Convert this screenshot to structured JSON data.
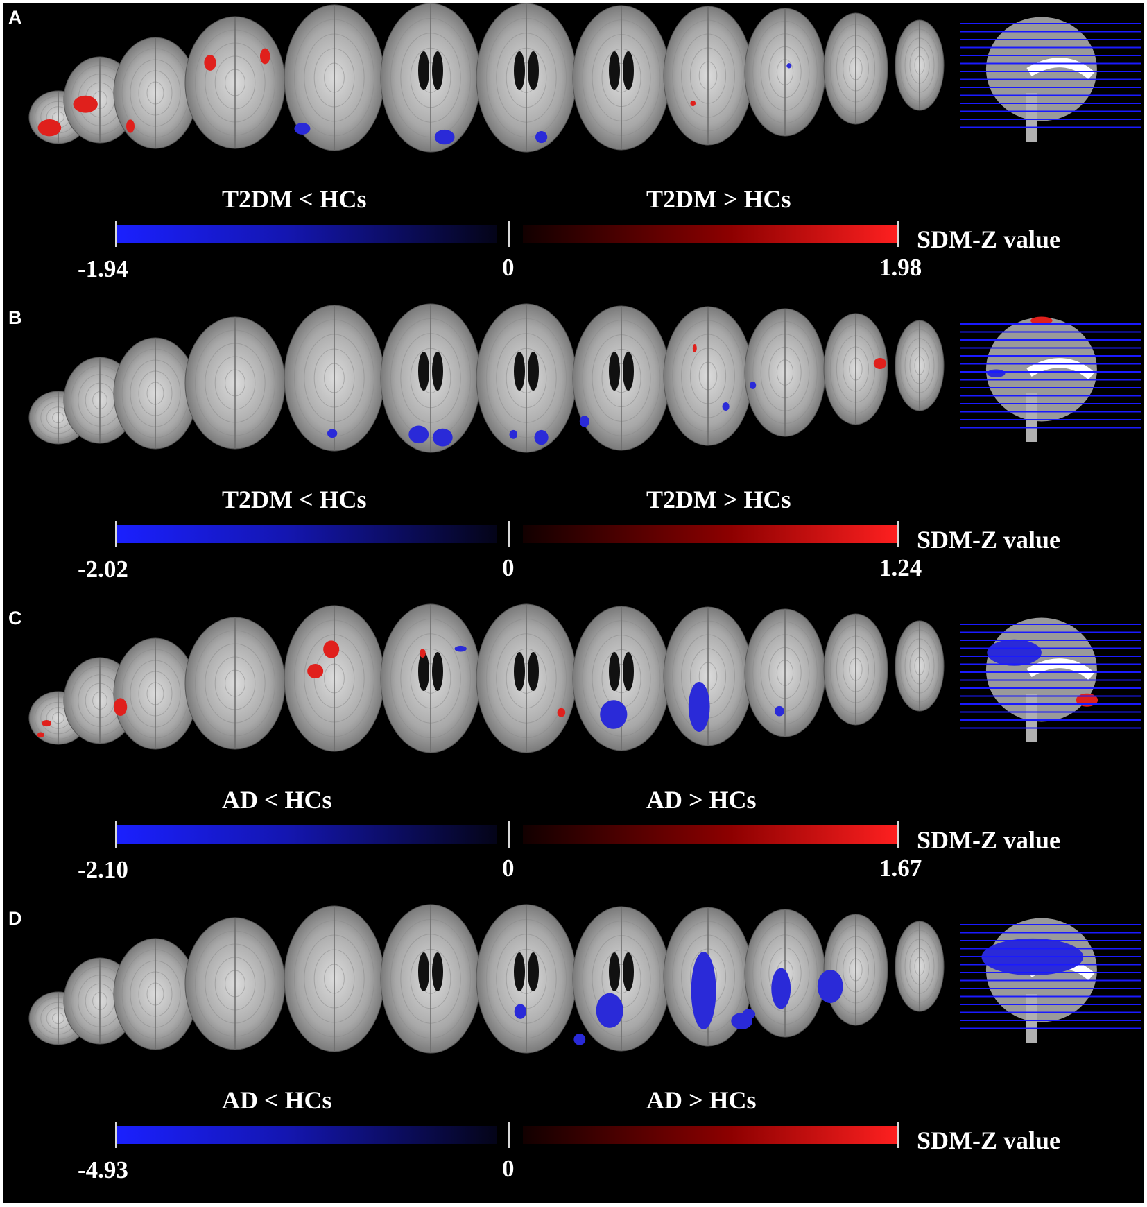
{
  "panels": [
    {
      "letter": "A",
      "left_label": "T2DM < HCs",
      "right_label": "T2DM > HCs",
      "axis_title": "SDM-Z value",
      "min": "-1.94",
      "zero": "0",
      "max": "1.98",
      "clusters": [
        {
          "slice": 0,
          "fx": 0.35,
          "fy": 0.7,
          "rx": 0.2,
          "ry": 0.16,
          "c": "#e0201c"
        },
        {
          "slice": 1,
          "fx": 0.3,
          "fy": 0.55,
          "rx": 0.17,
          "ry": 0.1,
          "c": "#e0201c"
        },
        {
          "slice": 2,
          "fx": 0.2,
          "fy": 0.8,
          "rx": 0.05,
          "ry": 0.06,
          "c": "#e0201c"
        },
        {
          "slice": 3,
          "fx": 0.25,
          "fy": 0.35,
          "rx": 0.06,
          "ry": 0.06,
          "c": "#e0201c"
        },
        {
          "slice": 3,
          "fx": 0.8,
          "fy": 0.3,
          "rx": 0.05,
          "ry": 0.06,
          "c": "#e0201c"
        },
        {
          "slice": 4,
          "fx": 0.18,
          "fy": 0.85,
          "rx": 0.08,
          "ry": 0.04,
          "c": "#2a2ad8"
        },
        {
          "slice": 5,
          "fx": 0.64,
          "fy": 0.9,
          "rx": 0.1,
          "ry": 0.05,
          "c": "#2a2ad8"
        },
        {
          "slice": 6,
          "fx": 0.65,
          "fy": 0.9,
          "rx": 0.06,
          "ry": 0.04,
          "c": "#2a2ad8"
        },
        {
          "slice": 8,
          "fx": 0.33,
          "fy": 0.7,
          "rx": 0.03,
          "ry": 0.02,
          "c": "#e0201c"
        },
        {
          "slice": 9,
          "fx": 0.55,
          "fy": 0.45,
          "rx": 0.03,
          "ry": 0.02,
          "c": "#2a2ad8"
        }
      ],
      "sagittal_clusters": []
    },
    {
      "letter": "B",
      "left_label": "T2DM < HCs",
      "right_label": "T2DM > HCs",
      "axis_title": "SDM-Z value",
      "min": "-2.02",
      "zero": "0",
      "max": "1.24",
      "clusters": [
        {
          "slice": 4,
          "fx": 0.48,
          "fy": 0.88,
          "rx": 0.05,
          "ry": 0.03,
          "c": "#2a2ad8"
        },
        {
          "slice": 5,
          "fx": 0.38,
          "fy": 0.88,
          "rx": 0.1,
          "ry": 0.06,
          "c": "#2a2ad8"
        },
        {
          "slice": 5,
          "fx": 0.62,
          "fy": 0.9,
          "rx": 0.1,
          "ry": 0.06,
          "c": "#2a2ad8"
        },
        {
          "slice": 6,
          "fx": 0.65,
          "fy": 0.9,
          "rx": 0.07,
          "ry": 0.05,
          "c": "#2a2ad8"
        },
        {
          "slice": 6,
          "fx": 0.37,
          "fy": 0.88,
          "rx": 0.04,
          "ry": 0.03,
          "c": "#2a2ad8"
        },
        {
          "slice": 7,
          "fx": 0.12,
          "fy": 0.8,
          "rx": 0.05,
          "ry": 0.04,
          "c": "#2a2ad8"
        },
        {
          "slice": 8,
          "fx": 0.35,
          "fy": 0.3,
          "rx": 0.02,
          "ry": 0.03,
          "c": "#e0201c"
        },
        {
          "slice": 8,
          "fx": 0.7,
          "fy": 0.72,
          "rx": 0.04,
          "ry": 0.03,
          "c": "#2a2ad8"
        },
        {
          "slice": 9,
          "fx": 0.1,
          "fy": 0.6,
          "rx": 0.04,
          "ry": 0.03,
          "c": "#2a2ad8"
        },
        {
          "slice": 10,
          "fx": 0.88,
          "fy": 0.45,
          "rx": 0.1,
          "ry": 0.05,
          "c": "#e0201c"
        }
      ],
      "sagittal_clusters": [
        {
          "fx": 0.45,
          "fy": 0.08,
          "rx": 0.06,
          "ry": 0.03,
          "c": "#e0201c"
        },
        {
          "fx": 0.2,
          "fy": 0.48,
          "rx": 0.05,
          "ry": 0.03,
          "c": "#2a2ad8"
        }
      ]
    },
    {
      "letter": "C",
      "left_label": "AD < HCs",
      "right_label": "AD > HCs",
      "axis_title": "SDM-Z value",
      "min": "-2.10",
      "zero": "0",
      "max": "1.67",
      "clusters": [
        {
          "slice": 0,
          "fx": 0.3,
          "fy": 0.6,
          "rx": 0.08,
          "ry": 0.06,
          "c": "#e0201c"
        },
        {
          "slice": 0,
          "fx": 0.2,
          "fy": 0.82,
          "rx": 0.06,
          "ry": 0.05,
          "c": "#e0201c"
        },
        {
          "slice": 2,
          "fx": 0.08,
          "fy": 0.62,
          "rx": 0.08,
          "ry": 0.08,
          "c": "#e0201c"
        },
        {
          "slice": 4,
          "fx": 0.47,
          "fy": 0.3,
          "rx": 0.08,
          "ry": 0.06,
          "c": "#e0201c"
        },
        {
          "slice": 4,
          "fx": 0.31,
          "fy": 0.45,
          "rx": 0.08,
          "ry": 0.05,
          "c": "#e0201c"
        },
        {
          "slice": 5,
          "fx": 0.42,
          "fy": 0.33,
          "rx": 0.03,
          "ry": 0.03,
          "c": "#e0201c"
        },
        {
          "slice": 5,
          "fx": 0.8,
          "fy": 0.3,
          "rx": 0.06,
          "ry": 0.02,
          "c": "#2a2ad8"
        },
        {
          "slice": 6,
          "fx": 0.85,
          "fy": 0.73,
          "rx": 0.04,
          "ry": 0.03,
          "c": "#e0201c"
        },
        {
          "slice": 7,
          "fx": 0.42,
          "fy": 0.75,
          "rx": 0.14,
          "ry": 0.1,
          "c": "#2a2ad8"
        },
        {
          "slice": 8,
          "fx": 0.4,
          "fy": 0.72,
          "rx": 0.12,
          "ry": 0.18,
          "c": "#2a2ad8"
        },
        {
          "slice": 9,
          "fx": 0.43,
          "fy": 0.8,
          "rx": 0.06,
          "ry": 0.04,
          "c": "#2a2ad8"
        }
      ],
      "sagittal_clusters": [
        {
          "fx": 0.3,
          "fy": 0.32,
          "rx": 0.15,
          "ry": 0.1,
          "c": "#2a2ad8"
        },
        {
          "fx": 0.7,
          "fy": 0.68,
          "rx": 0.06,
          "ry": 0.05,
          "c": "#e0201c"
        }
      ]
    },
    {
      "letter": "D",
      "left_label": "AD < HCs",
      "right_label": "AD > HCs",
      "axis_title": "SDM-Z value",
      "min": "-4.93",
      "zero": "0",
      "max": "",
      "clusters": [
        {
          "slice": 6,
          "fx": 0.44,
          "fy": 0.72,
          "rx": 0.06,
          "ry": 0.05,
          "c": "#2a2ad8"
        },
        {
          "slice": 7,
          "fx": 0.38,
          "fy": 0.72,
          "rx": 0.14,
          "ry": 0.12,
          "c": "#2a2ad8"
        },
        {
          "slice": 7,
          "fx": 0.07,
          "fy": 0.92,
          "rx": 0.06,
          "ry": 0.04,
          "c": "#2a2ad8"
        },
        {
          "slice": 8,
          "fx": 0.45,
          "fy": 0.6,
          "rx": 0.14,
          "ry": 0.28,
          "c": "#2a2ad8"
        },
        {
          "slice": 8,
          "fx": 0.88,
          "fy": 0.82,
          "rx": 0.12,
          "ry": 0.06,
          "c": "#2a2ad8"
        },
        {
          "slice": 9,
          "fx": 0.45,
          "fy": 0.62,
          "rx": 0.12,
          "ry": 0.16,
          "c": "#2a2ad8"
        },
        {
          "slice": 9,
          "fx": 0.05,
          "fy": 0.82,
          "rx": 0.08,
          "ry": 0.04,
          "c": "#2a2ad8"
        },
        {
          "slice": 10,
          "fx": 0.1,
          "fy": 0.65,
          "rx": 0.2,
          "ry": 0.15,
          "c": "#2a2ad8"
        }
      ],
      "sagittal_clusters": [
        {
          "fx": 0.4,
          "fy": 0.35,
          "rx": 0.28,
          "ry": 0.14,
          "c": "#2a2ad8"
        }
      ]
    }
  ]
}
